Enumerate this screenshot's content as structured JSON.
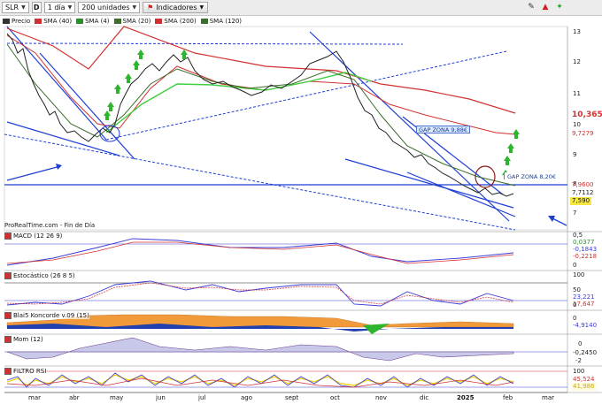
{
  "toolbar": {
    "symbol": "SLR",
    "type_badge": "D",
    "interval": "1 día",
    "units": "200 unidades",
    "indicators_label": "Indicadores"
  },
  "legend": {
    "items": [
      {
        "label": "Precio",
        "color": "#333333"
      },
      {
        "label": "SMA (40)",
        "color": "#d23030"
      },
      {
        "label": "SMA (4)",
        "color": "#2e8b2e"
      },
      {
        "label": "SMA (20)",
        "color": "#3b6e2b"
      },
      {
        "label": "SMA (200)",
        "color": "#d23030"
      },
      {
        "label": "SMA (120)",
        "color": "#3b6e2b"
      }
    ]
  },
  "watermark": "ProRealTime.com - Fin de Día",
  "price_axis": {
    "ticks": [
      "13",
      "12",
      "11",
      "10",
      "9",
      "8",
      "7"
    ],
    "tags": [
      {
        "text": "10,365",
        "color": "#d23030",
        "bg": "#ffffff"
      },
      {
        "text": "9,7279",
        "color": "#d23030",
        "bg": "#ffffff"
      },
      {
        "text": "7,9600",
        "color": "#d23030",
        "bg": "#ffffff"
      },
      {
        "text": "7,7112",
        "color": "#222222",
        "bg": "#ffffff"
      },
      {
        "text": "7,590",
        "color": "#111111",
        "bg": "#f5e642"
      }
    ]
  },
  "annotations": {
    "gap_zone_1": "GAP ZONA 9,88€",
    "gap_zone_2": "GAP ZONA 8,20€"
  },
  "panels": {
    "macd": {
      "label": "MACD (12 26 9)",
      "ticks": [
        "0,5",
        "0"
      ],
      "tags": [
        "0,0377",
        "-0,1843",
        "-0,2218"
      ]
    },
    "stoch": {
      "label": "Estocástico (26 8 5)",
      "ticks": [
        "100",
        "50",
        "0"
      ],
      "tags": [
        "23,221",
        "17,647"
      ]
    },
    "blai5": {
      "label": "Blai5 Koncorde v.09 (15)",
      "ticks": [
        "0"
      ],
      "tags": [
        "-4,9140"
      ]
    },
    "mom": {
      "label": "Mom (12)",
      "ticks": [
        "0",
        "-2"
      ],
      "tags": [
        "-0,2450"
      ]
    },
    "rsi": {
      "label": "FILTRO RSI",
      "ticks": [
        "100"
      ],
      "tags": [
        "45,524",
        "41,986"
      ]
    }
  },
  "x_axis": {
    "months": [
      "mar",
      "abr",
      "may",
      "jun",
      "jul",
      "ago",
      "sept",
      "oct",
      "nov",
      "dic",
      "2025",
      "feb",
      "mar"
    ]
  },
  "colors": {
    "accent_blue": "#1f3fd6",
    "sma_red": "#d23030",
    "sma_green": "#2e8b2e",
    "signal_green": "#2db52d"
  }
}
